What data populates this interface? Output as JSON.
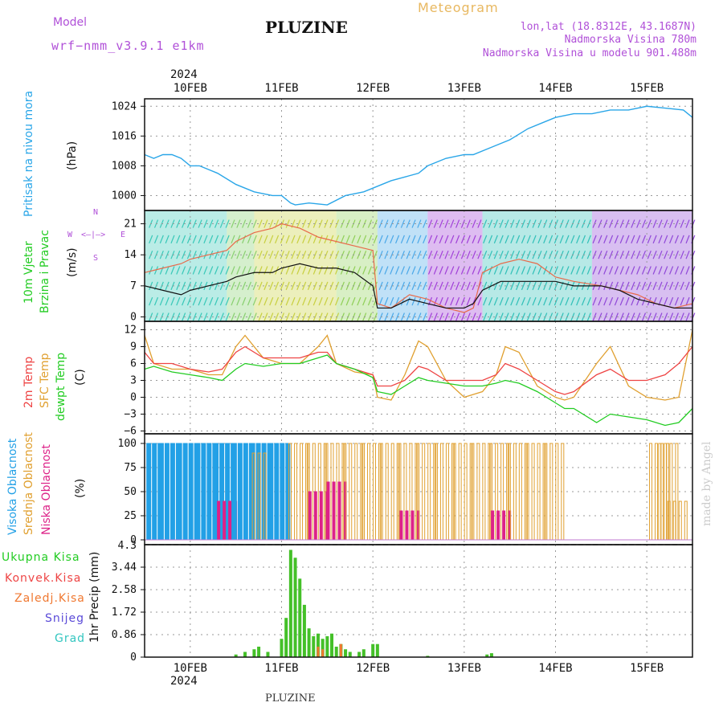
{
  "header": {
    "model_label": "Model",
    "model_name": "wrf−nmm_v3.9.1  e1km",
    "title": "PLUZINE",
    "meteogram_label": "Meteogram",
    "coords": "lon,lat (18.8312E, 43.1687N)",
    "elevation": "Nadmorska Visina 780m",
    "model_elevation": "Nadmorska Visina u modelu 901.488m",
    "year": "2024",
    "footer_title": "PLUZINE",
    "credit": "made by Angel"
  },
  "colors": {
    "pressure": "#2aa6e8",
    "temp2m": "#ee4444",
    "sfc": "#e0a030",
    "dewpt": "#22cc22",
    "high_cloud": "#22a0e6",
    "mid_cloud": "#e0a030",
    "low_cloud": "#dd2288",
    "total_precip": "#44c028",
    "conv": "#ee4444",
    "freezing": "#f07830",
    "snow": "#5a4ad8",
    "graupel": "#33c6c0",
    "axes_label_purple": "#b050d8"
  },
  "x_axis": {
    "ticks": [
      "10FEB",
      "11FEB",
      "12FEB",
      "13FEB",
      "14FEB",
      "15FEB"
    ],
    "start_day": 9.5,
    "end_day": 15.5
  },
  "panels": {
    "pressure": {
      "label": "Pritisak na nivou mora",
      "unit": "(hPa)",
      "ticks": [
        "1024",
        "1016",
        "1008",
        "1000"
      ]
    },
    "wind": {
      "label_line1": "10m Vjetar",
      "label_line2": "Brzina i Pravac",
      "unit": "(m/s)",
      "ticks": [
        "21",
        "14",
        "7",
        "0"
      ],
      "compass": {
        "w": "W",
        "e": "E",
        "n": "N",
        "s": "S"
      }
    },
    "temp": {
      "label_a": "2m Temp",
      "label_b": "SFC Temp",
      "label_c": "dewpt Temp",
      "unit": "(C)",
      "ticks": [
        "12",
        "9",
        "6",
        "3",
        "0",
        "−3",
        "−6"
      ]
    },
    "cloud": {
      "label_a": "Visoka Oblacnost",
      "label_b": "Srednja Oblacnost",
      "label_c": "Niska Oblacnost",
      "unit": "(%)",
      "ticks": [
        "100",
        "75",
        "50",
        "25",
        "0"
      ]
    },
    "precip": {
      "legend": [
        "Ukupna Kisa",
        "Konvek.Kisa",
        "Zaledj.Kisa",
        "Snijeg",
        "Grad"
      ],
      "unit": "1hr Precip (mm)",
      "top_label": "4.3",
      "ticks": [
        "3.44",
        "2.58",
        "1.72",
        "0.86",
        "0"
      ]
    }
  },
  "chart_data": [
    {
      "type": "line",
      "title": "Pritisak na nivou mora",
      "ylabel": "(hPa)",
      "ylim": [
        996,
        1026
      ],
      "x": [
        9.5,
        9.6,
        9.7,
        9.8,
        9.9,
        10.0,
        10.1,
        10.2,
        10.3,
        10.5,
        10.7,
        10.9,
        11.0,
        11.1,
        11.15,
        11.3,
        11.5,
        11.7,
        11.9,
        12.0,
        12.1,
        12.2,
        12.35,
        12.5,
        12.6,
        12.8,
        13.0,
        13.1,
        13.3,
        13.5,
        13.7,
        13.9,
        14.0,
        14.2,
        14.4,
        14.6,
        14.8,
        15.0,
        15.2,
        15.4,
        15.5
      ],
      "series": [
        {
          "values": [
            1011,
            1010,
            1011,
            1011,
            1010,
            1008,
            1008,
            1007,
            1006,
            1003,
            1001,
            1000,
            1000,
            998,
            997.5,
            998,
            997.5,
            1000,
            1001,
            1002,
            1003,
            1004,
            1005,
            1006,
            1008,
            1010,
            1011,
            1011,
            1013,
            1015,
            1018,
            1020,
            1021,
            1022,
            1022,
            1023,
            1023,
            1024,
            1023.5,
            1023,
            1021
          ]
        }
      ]
    },
    {
      "type": "line",
      "title": "10m Vjetar",
      "ylabel": "(m/s)",
      "ylim": [
        -1,
        24
      ],
      "x": [
        9.5,
        9.7,
        9.9,
        10.0,
        10.2,
        10.4,
        10.5,
        10.7,
        10.9,
        11.0,
        11.2,
        11.4,
        11.6,
        11.8,
        12.0,
        12.05,
        12.2,
        12.4,
        12.6,
        12.8,
        13.0,
        13.1,
        13.2,
        13.4,
        13.6,
        13.8,
        14.0,
        14.2,
        14.5,
        14.7,
        14.9,
        15.1,
        15.3,
        15.5
      ],
      "series": [
        {
          "values": [
            7,
            6,
            5,
            6,
            7,
            8,
            9,
            10,
            10,
            11,
            12,
            11,
            11,
            10,
            7,
            2,
            2,
            4,
            3,
            2,
            2,
            3,
            6,
            8,
            8,
            8,
            8,
            7,
            7,
            6,
            4,
            3,
            2,
            2
          ]
        },
        {
          "values": [
            10,
            11,
            12,
            13,
            14,
            15,
            17,
            19,
            20,
            21,
            20,
            18,
            17,
            16,
            15,
            3,
            2,
            5,
            4,
            2,
            1,
            2,
            10,
            12,
            13,
            12,
            9,
            8,
            7,
            6,
            5,
            3,
            2,
            3
          ]
        }
      ]
    },
    {
      "type": "line",
      "title": "2m Temp / SFC Temp / dewpt Temp",
      "ylabel": "(C)",
      "ylim": [
        -6,
        13
      ],
      "x": [
        9.5,
        9.6,
        9.8,
        10.0,
        10.2,
        10.35,
        10.5,
        10.6,
        10.8,
        11.0,
        11.2,
        11.4,
        11.5,
        11.6,
        11.8,
        12.0,
        12.05,
        12.2,
        12.35,
        12.5,
        12.6,
        12.8,
        13.0,
        13.2,
        13.35,
        13.45,
        13.6,
        13.8,
        14.0,
        14.1,
        14.2,
        14.45,
        14.6,
        14.8,
        15.0,
        15.2,
        15.35,
        15.5
      ],
      "series": [
        {
          "name": "2m Temp",
          "values": [
            8,
            6,
            6,
            5,
            4.5,
            5,
            8,
            9,
            7,
            7,
            7,
            8,
            8,
            6,
            5,
            4,
            2,
            2,
            3,
            5.5,
            5,
            3,
            3,
            3,
            4,
            6,
            5,
            3,
            1,
            0.5,
            1,
            4,
            5,
            3,
            3,
            4,
            6,
            9
          ]
        },
        {
          "name": "SFC Temp",
          "values": [
            11,
            6,
            5,
            5,
            4,
            4,
            9,
            11,
            7,
            6,
            6,
            9,
            11,
            6,
            4.5,
            4,
            0,
            -0.5,
            4,
            10,
            9,
            3,
            0,
            1,
            4,
            9,
            8,
            2,
            0,
            -0.5,
            0,
            6,
            9,
            2,
            0,
            -0.5,
            0,
            12
          ]
        },
        {
          "name": "dewpt Temp",
          "values": [
            5,
            5.5,
            4.5,
            4,
            3.5,
            3,
            5,
            6,
            5.5,
            6,
            6,
            7,
            7.5,
            6,
            5,
            3.5,
            1,
            0.5,
            2,
            3.5,
            3,
            2.5,
            2,
            2,
            2.5,
            3,
            2.5,
            1,
            -1,
            -2,
            -2,
            -4.5,
            -3,
            -3.5,
            -4,
            -5,
            -4.5,
            -2
          ]
        }
      ]
    },
    {
      "type": "bar",
      "title": "Oblacnost",
      "ylabel": "(%)",
      "ylim": [
        0,
        100
      ],
      "x": [
        9.55,
        9.75,
        9.95,
        10.15,
        10.35,
        10.55,
        10.75,
        10.95,
        11.15,
        11.35,
        11.55,
        11.75,
        11.95,
        12.15,
        12.35,
        12.55,
        12.75,
        12.95,
        13.15,
        13.35,
        13.55,
        13.75,
        13.95,
        14.15,
        15.1,
        15.2,
        15.3
      ],
      "series": [
        {
          "name": "Visoka Oblacnost",
          "values": [
            100,
            100,
            100,
            100,
            100,
            100,
            100,
            100,
            0,
            0,
            0,
            0,
            0,
            0,
            0,
            0,
            0,
            0,
            0,
            0,
            0,
            0,
            0,
            0,
            0,
            0,
            0
          ]
        },
        {
          "name": "Srednja Oblacnost",
          "values": [
            0,
            0,
            0,
            0,
            0,
            0,
            90,
            0,
            100,
            100,
            100,
            100,
            100,
            100,
            100,
            100,
            100,
            100,
            100,
            100,
            100,
            100,
            100,
            0,
            100,
            100,
            40
          ]
        },
        {
          "name": "Niska Oblacnost",
          "values": [
            0,
            0,
            0,
            0,
            40,
            0,
            0,
            0,
            0,
            50,
            60,
            0,
            0,
            0,
            30,
            0,
            0,
            0,
            0,
            30,
            0,
            0,
            0,
            0,
            0,
            0,
            0
          ]
        }
      ]
    },
    {
      "type": "bar",
      "title": "1hr Precip",
      "ylabel": "(mm)",
      "ylim": [
        0,
        4.3
      ],
      "x": [
        10.5,
        10.6,
        10.7,
        10.75,
        10.85,
        11.0,
        11.05,
        11.1,
        11.15,
        11.2,
        11.25,
        11.3,
        11.35,
        11.4,
        11.45,
        11.5,
        11.55,
        11.6,
        11.65,
        11.7,
        11.75,
        11.85,
        11.9,
        12.0,
        12.05,
        12.6,
        13.25,
        13.3
      ],
      "series": [
        {
          "name": "Ukupna Kisa",
          "values": [
            0.1,
            0.2,
            0.3,
            0.4,
            0.2,
            0.7,
            1.5,
            4.1,
            3.8,
            3.0,
            2.0,
            1.1,
            0.8,
            0.9,
            0.7,
            0.8,
            0.9,
            0.4,
            0.5,
            0.3,
            0.2,
            0.2,
            0.3,
            0.5,
            0.5,
            0.05,
            0.1,
            0.15
          ]
        },
        {
          "name": "Konvek.Kisa",
          "values": [
            0,
            0,
            0,
            0,
            0,
            0,
            0,
            0,
            0,
            0,
            0,
            0,
            0,
            0,
            0,
            0,
            0,
            0,
            0,
            0,
            0,
            0,
            0,
            0,
            0,
            0,
            0,
            0
          ]
        },
        {
          "name": "Zaledj.Kisa",
          "values": [
            0,
            0,
            0,
            0,
            0,
            0,
            0,
            0,
            0,
            0,
            0,
            0,
            0,
            0.4,
            0.3,
            0,
            0,
            0,
            0.5,
            0,
            0,
            0,
            0,
            0,
            0,
            0,
            0,
            0
          ]
        }
      ]
    }
  ]
}
